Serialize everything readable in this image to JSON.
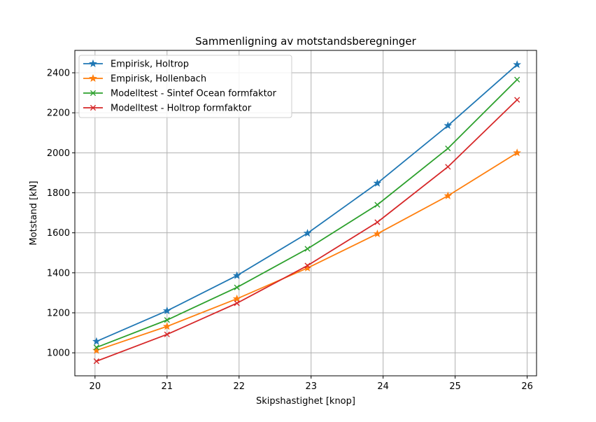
{
  "chart_data": {
    "type": "line",
    "title": "Sammenligning av motstandsberegninger",
    "xlabel": "Skipshastighet [knop]",
    "ylabel": "Motstand [kN]",
    "xlim": [
      19.72,
      26.13
    ],
    "ylim": [
      885,
      2512
    ],
    "xticks": [
      20,
      21,
      22,
      23,
      24,
      25,
      26
    ],
    "yticks": [
      1000,
      1200,
      1400,
      1600,
      1800,
      2000,
      2200,
      2400
    ],
    "grid": true,
    "legend_position": "upper-left",
    "series": [
      {
        "name": "Empirisk, Holtrop",
        "color": "#1f77b4",
        "marker": "star",
        "x": [
          20.02,
          21.0,
          21.97,
          22.95,
          23.92,
          24.9,
          25.86
        ],
        "y": [
          1057,
          1210,
          1386,
          1598,
          1848,
          2136,
          2441
        ]
      },
      {
        "name": "Empirisk, Hollenbach",
        "color": "#ff7f0e",
        "marker": "star",
        "x": [
          20.02,
          21.0,
          21.97,
          22.95,
          23.92,
          24.9,
          25.86
        ],
        "y": [
          1012,
          1132,
          1270,
          1424,
          1595,
          1785,
          2000
        ]
      },
      {
        "name": "Modelltest - Sintef Ocean formfaktor",
        "color": "#2ca02c",
        "marker": "x",
        "x": [
          20.02,
          21.0,
          21.97,
          22.95,
          23.92,
          24.9,
          25.86
        ],
        "y": [
          1027,
          1164,
          1327,
          1520,
          1740,
          2022,
          2366
        ]
      },
      {
        "name": "Modelltest - Holtrop formfaktor",
        "color": "#d62728",
        "marker": "x",
        "x": [
          20.02,
          21.0,
          21.97,
          22.95,
          23.92,
          24.9,
          25.86
        ],
        "y": [
          958,
          1092,
          1248,
          1436,
          1653,
          1930,
          2265
        ]
      }
    ]
  }
}
